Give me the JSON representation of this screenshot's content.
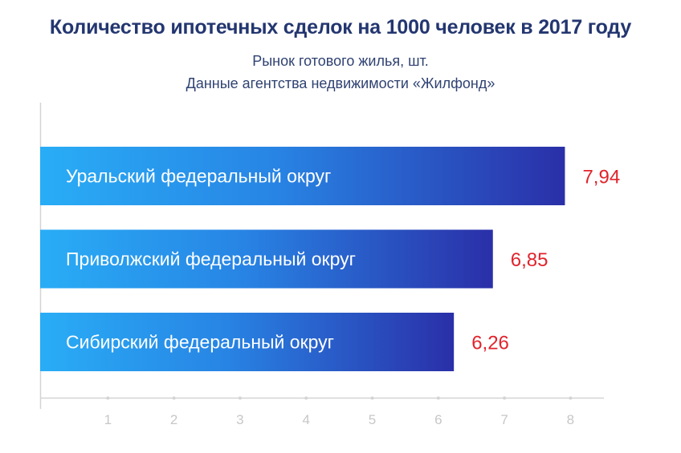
{
  "chart_data": {
    "type": "bar",
    "orientation": "horizontal",
    "title": "Количество ипотечных сделок на 1000 человек в 2017 году",
    "subtitle": [
      "Рынок готового жилья, шт.",
      "Данные агентства недвижимости «Жилфонд»"
    ],
    "categories": [
      "Уральский федеральный округ",
      "Приволжский федеральный округ",
      "Сибирский федеральный округ"
    ],
    "values": [
      7.94,
      6.85,
      6.26
    ],
    "value_labels": [
      "7,94",
      "6,85",
      "6,26"
    ],
    "xlim": [
      0,
      8
    ],
    "x_ticks": [
      1,
      2,
      3,
      4,
      5,
      6,
      7,
      8
    ],
    "grid": false,
    "colors": {
      "bar_start": "#29adf6",
      "bar_end": "#2a2fa8",
      "value": "#e1232c",
      "title": "#233670",
      "axis": "#d4d4d4"
    }
  }
}
